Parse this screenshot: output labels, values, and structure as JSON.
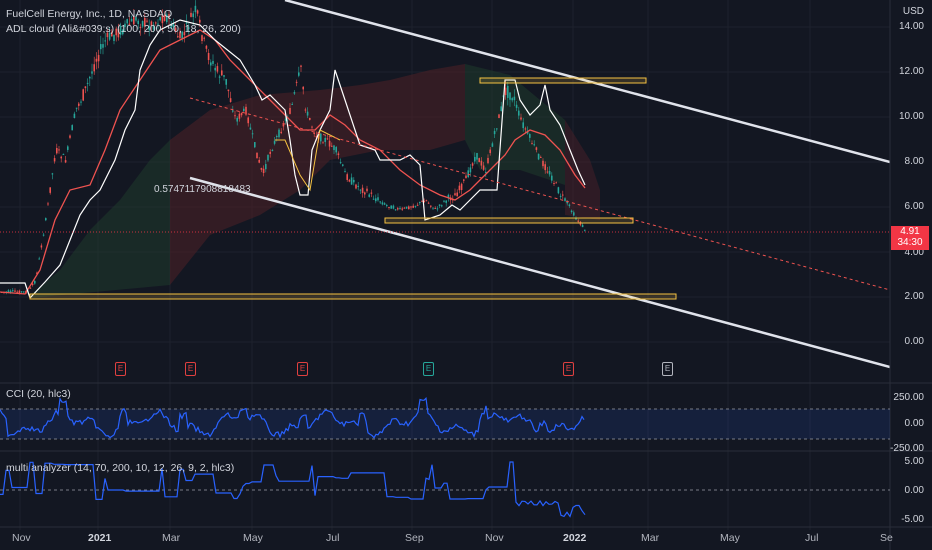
{
  "header": {
    "symbol_line": "FuelCell Energy, Inc., 1D, NASDAQ",
    "indicator_line": "ADL cloud (Ali&#039;s) (100, 200, 50, 18, 26, 200)",
    "currency": "USD"
  },
  "price_axis": {
    "ticks": [
      "14.00",
      "12.00",
      "10.00",
      "8.00",
      "6.00",
      "4.00",
      "2.00",
      "0.00"
    ],
    "last_price": "4.91",
    "countdown": "34:30",
    "last_price_color": "#f23645"
  },
  "annotation": {
    "regression_value": "0.5747117908818483"
  },
  "earnings_markers": [
    {
      "letter": "E",
      "type": "red"
    },
    {
      "letter": "E",
      "type": "red"
    },
    {
      "letter": "E",
      "type": "red"
    },
    {
      "letter": "E",
      "type": "green"
    },
    {
      "letter": "E",
      "type": "red"
    },
    {
      "letter": "E",
      "type": "grey"
    }
  ],
  "cci_pane": {
    "label": "CCI (20, hlc3)",
    "ticks": [
      "250.00",
      "0.00",
      "-250.00"
    ]
  },
  "multi_pane": {
    "label": "multi analyzer (14, 70, 200, 10, 12, 26, 9, 2, hlc3)",
    "ticks": [
      "5.00",
      "0.00",
      "-5.00"
    ]
  },
  "time_axis": {
    "labels": [
      "Nov",
      "2021",
      "Mar",
      "May",
      "Jul",
      "Sep",
      "Nov",
      "2022",
      "Mar",
      "May",
      "Jul",
      "Se"
    ]
  },
  "colors": {
    "background": "#131722",
    "up": "#26a69a",
    "down": "#ef5350",
    "channel": "#e0e3eb",
    "zone": "#f5c242",
    "cci_line": "#2962ff"
  }
}
